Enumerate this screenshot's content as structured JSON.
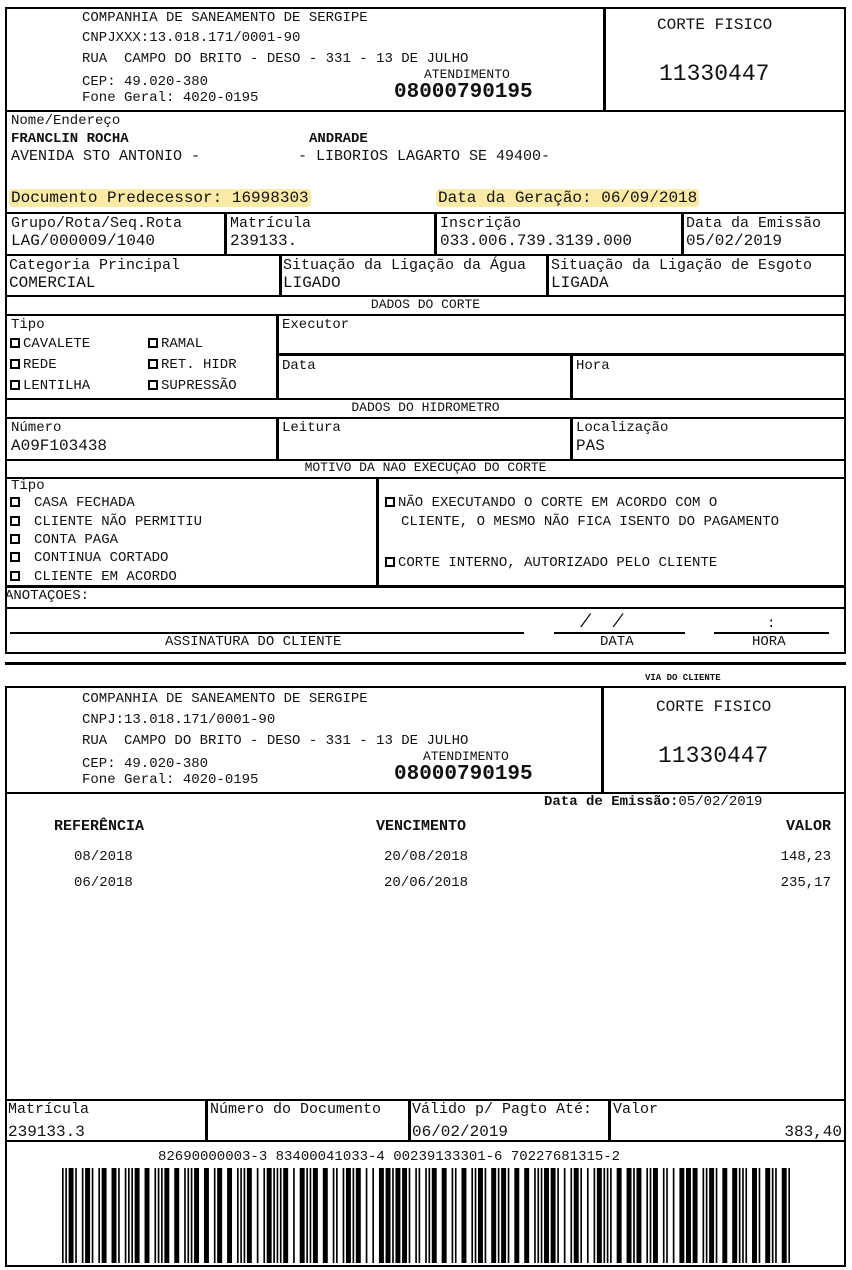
{
  "header": {
    "company": "COMPANHIA DE SANEAMENTO DE SERGIPE",
    "cnpj_top": "CNPJXXX:13.018.171/0001-90",
    "cnpj_bottom": "CNPJ:13.018.171/0001-90",
    "address": "RUA  CAMPO DO BRITO - DESO - 331 - 13 DE JULHO",
    "cep": "CEP: 49.020-380",
    "phone": "Fone Geral: 4020-0195",
    "atendimento_label": "ATENDIMENTO",
    "atendimento_number": "08000790195",
    "doc_type": "CORTE FISICO",
    "doc_number": "11330447"
  },
  "customer": {
    "label": "Nome/Endereço",
    "name_first": "FRANCLIN ROCHA",
    "name_last": "ANDRADE",
    "address_1": "AVENIDA STO ANTONIO -",
    "address_2": "- LIBORIOS LAGARTO SE 49400-",
    "predecessor": "Documento Predecessor: 16998303",
    "generation_date": "Data da Geração: 06/09/2018"
  },
  "info": {
    "grupo_label": "Grupo/Rota/Seq.Rota",
    "grupo": "LAG/000009/1040",
    "matricula_label": "Matrícula",
    "matricula": "239133.",
    "inscricao_label": "Inscrição",
    "inscricao": "033.006.739.3139.000",
    "emissao_label": "Data da Emissão",
    "emissao": "05/02/2019",
    "categoria_label": "Categoria Principal",
    "categoria": "COMERCIAL",
    "agua_label": "Situação da Ligação da Água",
    "agua": "LIGADO",
    "esgoto_label": "Situação da Ligação de Esgoto",
    "esgoto": "LIGADA"
  },
  "corte": {
    "title": "DADOS DO CORTE",
    "tipo_label": "Tipo",
    "tipos": [
      "CAVALETE",
      "RAMAL",
      "REDE",
      "RET. HIDR",
      "LENTILHA",
      "SUPRESSÃO"
    ],
    "executor_label": "Executor",
    "data_label": "Data",
    "hora_label": "Hora"
  },
  "hidrometro": {
    "title": "DADOS DO HIDROMETRO",
    "numero_label": "Número",
    "numero": "A09F103438",
    "leitura_label": "Leitura",
    "local_label": "Localização",
    "local": "PAS"
  },
  "motivo": {
    "title": "MOTIVO DA NAO EXECUÇAO DO CORTE",
    "tipo_label": "Tipo",
    "options": [
      "CASA FECHADA",
      "CLIENTE NÃO PERMITIU",
      "CONTA PAGA",
      "CONTINUA CORTADO",
      "CLIENTE EM ACORDO"
    ],
    "acordo_1": "NÃO EXECUTANDO O CORTE EM ACORDO COM O",
    "acordo_2": "CLIENTE, O MESMO NÃO FICA ISENTO DO PAGAMENTO",
    "interno": "CORTE INTERNO, AUTORIZADO PELO CLIENTE"
  },
  "anotacoes_label": "ANOTAÇOES:",
  "signature": {
    "cliente": "ASSINATURA DO CLIENTE",
    "data": "DATA",
    "data_mark": "/  /",
    "hora": "HORA",
    "hora_mark": ":"
  },
  "via": "VIA DO CLIENTE",
  "bill": {
    "emissao_label": "Data de Emissão:",
    "emissao": "05/02/2019",
    "columns": [
      "REFERÊNCIA",
      "VENCIMENTO",
      "VALOR"
    ],
    "rows": [
      [
        "08/2018",
        "20/08/2018",
        "148,23"
      ],
      [
        "06/2018",
        "20/06/2018",
        "235,17"
      ]
    ]
  },
  "footer": {
    "matricula_label": "Matrícula",
    "matricula": "239133.3",
    "documento_label": "Número do Documento",
    "valido_label": "Válido p/ Pagto Até:",
    "valido": "06/02/2019",
    "valor_label": "Valor",
    "valor": "383,40",
    "barcode_digits": "82690000003-3 83400041033-4 00239133301-6 70227681315-2"
  }
}
